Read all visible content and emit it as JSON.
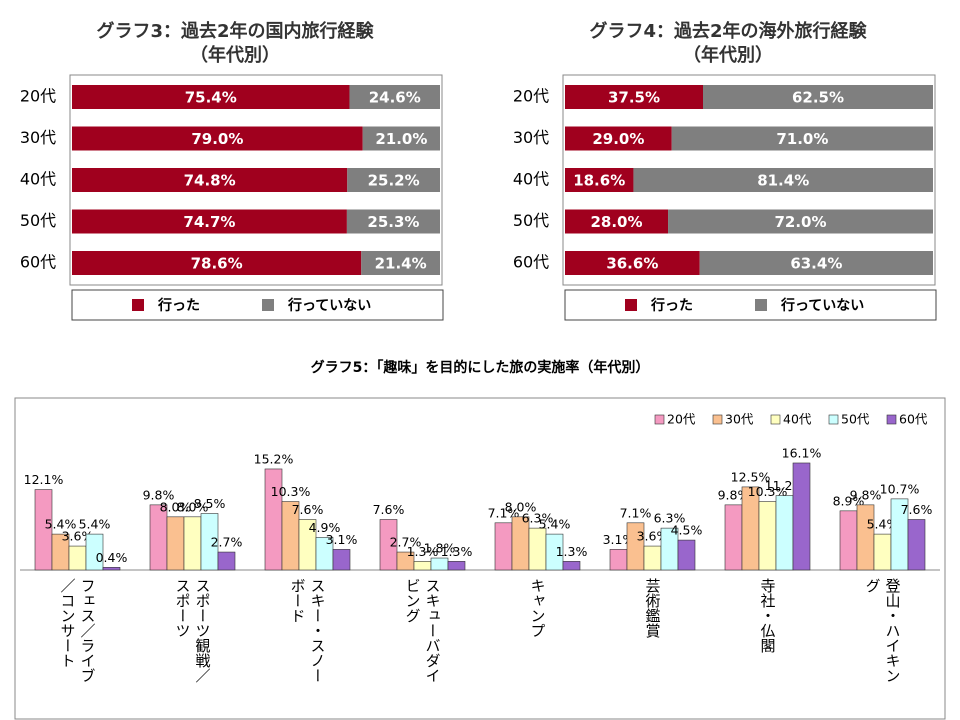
{
  "chart_data": [
    {
      "type": "stacked_bar_h",
      "title": "グラフ3：過去2年の国内旅行経験",
      "subtitle": "（年代別）",
      "categories": [
        "20代",
        "30代",
        "40代",
        "50代",
        "60代"
      ],
      "series": [
        {
          "name": "行った",
          "color": "#a0001e",
          "values": [
            75.4,
            79.0,
            74.8,
            74.7,
            78.6
          ],
          "value_labels": [
            "75.4%",
            "79.0%",
            "74.8%",
            "74.7%",
            "78.6%"
          ]
        },
        {
          "name": "行っていない",
          "color": "#7f7f7f",
          "values": [
            24.6,
            21.0,
            25.2,
            25.3,
            21.4
          ],
          "value_labels": [
            "24.6%",
            "21.0%",
            "25.2%",
            "25.3%",
            "21.4%"
          ]
        }
      ],
      "xlim": [
        0,
        100
      ],
      "legend": "bottom"
    },
    {
      "type": "stacked_bar_h",
      "title": "グラフ4：過去2年の海外旅行経験",
      "subtitle": "（年代別）",
      "categories": [
        "20代",
        "30代",
        "40代",
        "50代",
        "60代"
      ],
      "series": [
        {
          "name": "行った",
          "color": "#a0001e",
          "values": [
            37.5,
            29.0,
            18.6,
            28.0,
            36.6
          ],
          "value_labels": [
            "37.5%",
            "29.0%",
            "18.6%",
            "28.0%",
            "36.6%"
          ]
        },
        {
          "name": "行っていない",
          "color": "#7f7f7f",
          "values": [
            62.5,
            71.0,
            81.4,
            72.0,
            63.4
          ],
          "value_labels": [
            "62.5%",
            "71.0%",
            "81.4%",
            "72.0%",
            "63.4%"
          ]
        }
      ],
      "xlim": [
        0,
        100
      ],
      "legend": "bottom"
    },
    {
      "type": "grouped_bar",
      "title": "グラフ5：「趣味」を目的にした旅の実施率（年代別）",
      "categories": [
        "フェス／ライブ／コンサート",
        "スポーツ観戦／スポーツ",
        "スキー・スノーボード",
        "スキューバダイビング",
        "キャンプ",
        "芸術鑑賞",
        "寺社・仏閣",
        "登山・ハイキング"
      ],
      "series": [
        {
          "name": "20代",
          "color": "#f49ac1",
          "values": [
            12.1,
            9.8,
            15.2,
            7.6,
            7.1,
            3.1,
            9.8,
            8.9
          ],
          "value_labels": [
            "12.1%",
            "9.8%",
            "15.2%",
            "7.6%",
            "7.1%",
            "3.1%",
            "9.8%",
            "8.9%"
          ]
        },
        {
          "name": "30代",
          "color": "#fac090",
          "values": [
            5.4,
            8.0,
            10.3,
            2.7,
            8.0,
            7.1,
            12.5,
            9.8
          ],
          "value_labels": [
            "5.4%",
            "8.0%",
            "10.3%",
            "2.7%",
            "8.0%",
            "7.1%",
            "12.5%",
            "9.8%"
          ]
        },
        {
          "name": "40代",
          "color": "#ffffc0",
          "values": [
            3.6,
            8.0,
            7.6,
            1.3,
            6.3,
            3.6,
            10.3,
            5.4
          ],
          "value_labels": [
            "3.6%",
            "8.0%",
            "7.6%",
            "1.3%",
            "6.3%",
            "3.6%",
            "10.3%",
            "5.4%"
          ]
        },
        {
          "name": "50代",
          "color": "#ccffff",
          "values": [
            5.4,
            8.5,
            4.9,
            1.8,
            5.4,
            6.3,
            11.2,
            10.7
          ],
          "value_labels": [
            "5.4%",
            "8.5%",
            "4.9%",
            "1.8%",
            "5.4%",
            "6.3%",
            "11.2%",
            "10.7%"
          ]
        },
        {
          "name": "60代",
          "color": "#9966cc",
          "values": [
            0.4,
            2.7,
            3.1,
            1.3,
            1.3,
            4.5,
            16.1,
            7.6
          ],
          "value_labels": [
            "0.4%",
            "2.7%",
            "3.1%",
            "1.3%",
            "1.3%",
            "4.5%",
            "16.1%",
            "7.6%"
          ]
        }
      ],
      "ylim": [
        0,
        17
      ],
      "legend": "upper right"
    }
  ]
}
